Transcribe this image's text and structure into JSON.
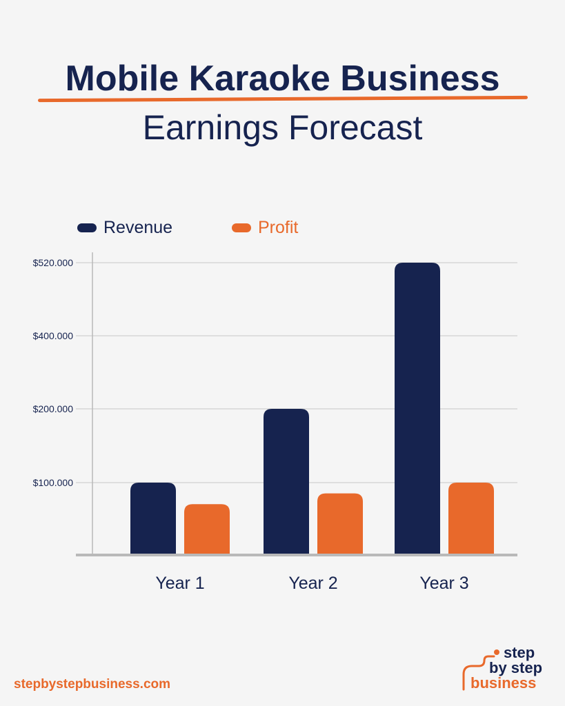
{
  "title": {
    "line1": "Mobile Karaoke Business",
    "line2": "Earnings Forecast"
  },
  "colors": {
    "navy": "#16234f",
    "orange": "#e8692b",
    "grid": "#d6d6d6",
    "axis": "#b9b9b9",
    "background": "#f5f5f5"
  },
  "footer": {
    "url": "stepbystepbusiness.com"
  },
  "logo": {
    "line1": "step",
    "line2": "by step",
    "line3": "business"
  },
  "chart_data": {
    "type": "bar",
    "categories": [
      "Year 1",
      "Year 2",
      "Year 3"
    ],
    "series": [
      {
        "name": "Revenue",
        "color": "#16234f",
        "values": [
          100000,
          200000,
          520000
        ]
      },
      {
        "name": "Profit",
        "color": "#e8692b",
        "values": [
          70000,
          85000,
          100000
        ]
      }
    ],
    "yticks": [
      {
        "value": 100000,
        "label": "$100.000"
      },
      {
        "value": 200000,
        "label": "$200.000"
      },
      {
        "value": 400000,
        "label": "$400.000"
      },
      {
        "value": 520000,
        "label": "$520.000"
      }
    ],
    "y_scale": "non-linear (ticks evenly spaced)",
    "legend_position": "top-left",
    "grid": true,
    "xlabel": "",
    "ylabel": ""
  }
}
